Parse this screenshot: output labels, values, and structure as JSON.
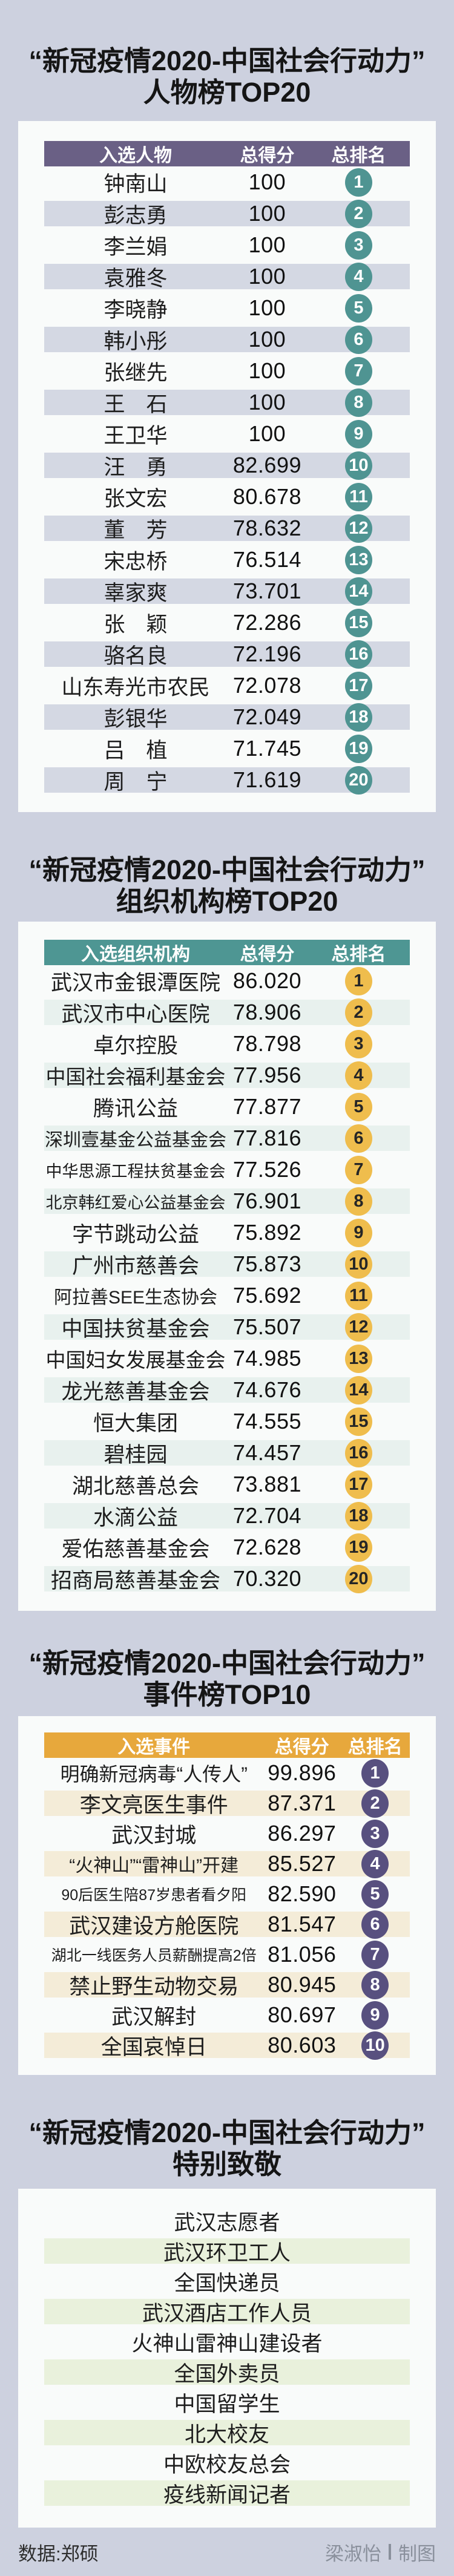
{
  "sections": [
    {
      "id": "people",
      "title_line1": "“新冠疫情2020-中国社会行动力”",
      "title_line2": "人物榜TOP20",
      "theme": {
        "header_bg": "#6a6085",
        "alt_bg": "#d4d8e3",
        "badge_bg": "#4f9492",
        "badge_fg": "#ffffff"
      }
    },
    {
      "id": "organizations",
      "title_line1": "“新冠疫情2020-中国社会行动力”",
      "title_line2": "组织机构榜TOP20",
      "theme": {
        "header_bg": "#4e9693",
        "alt_bg": "#e8f1ee",
        "badge_bg": "#efbd4d",
        "badge_fg": "#262626"
      }
    },
    {
      "id": "events",
      "title_line1": "“新冠疫情2020-中国社会行动力”",
      "title_line2": "事件榜TOP10",
      "theme": {
        "header_bg": "#e7a83c",
        "alt_bg": "#f4ecd8",
        "badge_bg": "#58507f",
        "badge_fg": "#ffffff"
      }
    },
    {
      "id": "tribute",
      "title_line1": "“新冠疫情2020-中国社会行动力”",
      "title_line2": "特别致敬",
      "theme": {
        "alt_bg": "#e9f1dc"
      }
    }
  ],
  "chart_data": [
    {
      "type": "table",
      "title": "“新冠疫情2020-中国社会行动力”人物榜TOP20",
      "columns": [
        "入选人物",
        "总得分",
        "总排名"
      ],
      "rows": [
        [
          "钟南山",
          "100",
          1
        ],
        [
          "彭志勇",
          "100",
          2
        ],
        [
          "李兰娟",
          "100",
          3
        ],
        [
          "袁雅冬",
          "100",
          4
        ],
        [
          "李晓静",
          "100",
          5
        ],
        [
          "韩小彤",
          "100",
          6
        ],
        [
          "张继先",
          "100",
          7
        ],
        [
          "王　石",
          "100",
          8
        ],
        [
          "王卫华",
          "100",
          9
        ],
        [
          "汪　勇",
          "82.699",
          10
        ],
        [
          "张文宏",
          "80.678",
          11
        ],
        [
          "董　芳",
          "78.632",
          12
        ],
        [
          "宋忠桥",
          "76.514",
          13
        ],
        [
          "辜家爽",
          "73.701",
          14
        ],
        [
          "张　颖",
          "72.286",
          15
        ],
        [
          "骆名良",
          "72.196",
          16
        ],
        [
          "山东寿光市农民",
          "72.078",
          17
        ],
        [
          "彭银华",
          "72.049",
          18
        ],
        [
          "吕　植",
          "71.745",
          19
        ],
        [
          "周　宁",
          "71.619",
          20
        ]
      ]
    },
    {
      "type": "table",
      "title": "“新冠疫情2020-中国社会行动力”组织机构榜TOP20",
      "columns": [
        "入选组织机构",
        "总得分",
        "总排名"
      ],
      "rows": [
        [
          "武汉市金银潭医院",
          "86.020",
          1
        ],
        [
          "武汉市中心医院",
          "78.906",
          2
        ],
        [
          "卓尔控股",
          "78.798",
          3
        ],
        [
          "中国社会福利基金会",
          "77.956",
          4
        ],
        [
          "腾讯公益",
          "77.877",
          5
        ],
        [
          "深圳壹基金公益基金会",
          "77.816",
          6
        ],
        [
          "中华思源工程扶贫基金会",
          "77.526",
          7
        ],
        [
          "北京韩红爱心公益基金会",
          "76.901",
          8
        ],
        [
          "字节跳动公益",
          "75.892",
          9
        ],
        [
          "广州市慈善会",
          "75.873",
          10
        ],
        [
          "阿拉善SEE生态协会",
          "75.692",
          11
        ],
        [
          "中国扶贫基金会",
          "75.507",
          12
        ],
        [
          "中国妇女发展基金会",
          "74.985",
          13
        ],
        [
          "龙光慈善基金会",
          "74.676",
          14
        ],
        [
          "恒大集团",
          "74.555",
          15
        ],
        [
          "碧桂园",
          "74.457",
          16
        ],
        [
          "湖北慈善总会",
          "73.881",
          17
        ],
        [
          "水滴公益",
          "72.704",
          18
        ],
        [
          "爱佑慈善基金会",
          "72.628",
          19
        ],
        [
          "招商局慈善基金会",
          "70.320",
          20
        ]
      ]
    },
    {
      "type": "table",
      "title": "“新冠疫情2020-中国社会行动力”事件榜TOP10",
      "columns": [
        "入选事件",
        "总得分",
        "总排名"
      ],
      "rows": [
        [
          "明确新冠病毒“人传人”",
          "99.896",
          1
        ],
        [
          "李文亮医生事件",
          "87.371",
          2
        ],
        [
          "武汉封城",
          "86.297",
          3
        ],
        [
          "“火神山”“雷神山”开建",
          "85.527",
          4
        ],
        [
          "90后医生陪87岁患者看夕阳",
          "82.590",
          5
        ],
        [
          "武汉建设方舱医院",
          "81.547",
          6
        ],
        [
          "湖北一线医务人员薪酬提高2倍",
          "81.056",
          7
        ],
        [
          "禁止野生动物交易",
          "80.945",
          8
        ],
        [
          "武汉解封",
          "80.697",
          9
        ],
        [
          "全国哀悼日",
          "80.603",
          10
        ]
      ]
    },
    {
      "type": "list",
      "title": "“新冠疫情2020-中国社会行动力”特别致敬",
      "items": [
        "武汉志愿者",
        "武汉环卫工人",
        "全国快递员",
        "武汉酒店工作人员",
        "火神山雷神山建设者",
        "全国外卖员",
        "中国留学生",
        "北大校友",
        "中欧校友总会",
        "疫线新闻记者"
      ]
    }
  ],
  "footer": {
    "data_source": "数据:郑硕",
    "author": "梁淑怡",
    "role": "制图"
  }
}
